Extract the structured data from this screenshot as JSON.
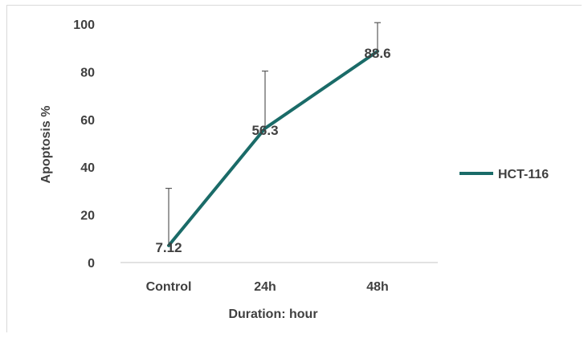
{
  "chart_data": {
    "type": "line",
    "categories": [
      "Control",
      "24h",
      "48h"
    ],
    "series": [
      {
        "name": "HCT-116",
        "values": [
          7.12,
          56.3,
          88.6
        ],
        "error_upper": [
          24,
          24,
          12
        ],
        "color": "#1a6b68"
      }
    ],
    "data_labels": [
      "7.12",
      "56.3",
      "88.6"
    ],
    "xlabel": "Duration: hour",
    "ylabel": "Apoptosis %",
    "ylim": [
      0,
      100
    ],
    "yticks": [
      0,
      20,
      40,
      60,
      80,
      100
    ],
    "legend_position": "right",
    "grid": false
  }
}
